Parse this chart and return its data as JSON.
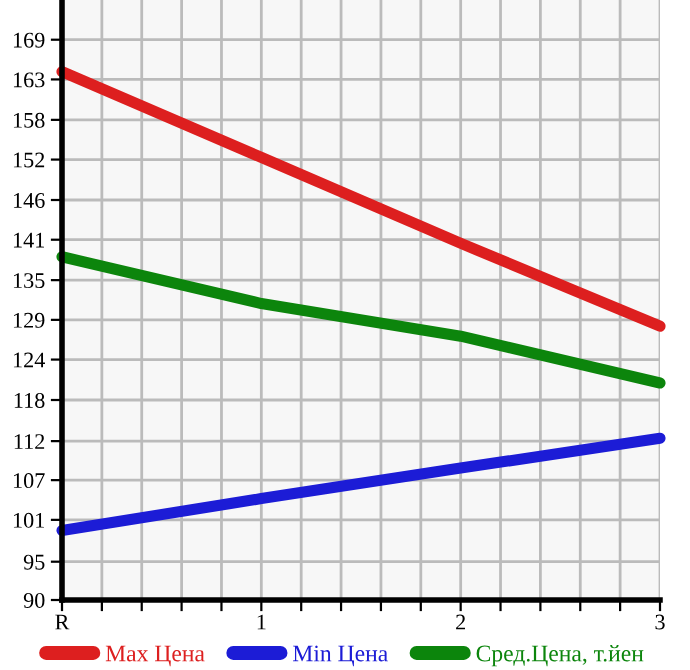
{
  "chart_data": {
    "type": "line",
    "x": [
      0,
      1,
      2,
      3
    ],
    "series": [
      {
        "name": "Max Цена",
        "color": "#dd1f1f",
        "values": [
          164.5,
          152.4,
          140.3,
          128.6
        ]
      },
      {
        "name": "Min Цена",
        "color": "#1c1cd6",
        "values": [
          99.8,
          104.3,
          108.6,
          112.8
        ]
      },
      {
        "name": "Сред.Цена, т.йен",
        "color": "#0c850c",
        "values": [
          138.4,
          131.8,
          127.2,
          120.6
        ]
      }
    ],
    "xlim": [
      0,
      3
    ],
    "xticks": [
      {
        "value": 0,
        "label": "R"
      },
      {
        "value": 0.2,
        "label": null
      },
      {
        "value": 0.4,
        "label": null
      },
      {
        "value": 0.6,
        "label": null
      },
      {
        "value": 0.8,
        "label": null
      },
      {
        "value": 1,
        "label": "1"
      },
      {
        "value": 1.2,
        "label": null
      },
      {
        "value": 1.4,
        "label": null
      },
      {
        "value": 1.6,
        "label": null
      },
      {
        "value": 1.8,
        "label": null
      },
      {
        "value": 2,
        "label": "2"
      },
      {
        "value": 2.2,
        "label": null
      },
      {
        "value": 2.4,
        "label": null
      },
      {
        "value": 2.6,
        "label": null
      },
      {
        "value": 2.8,
        "label": null
      },
      {
        "value": 3,
        "label": "3"
      }
    ],
    "ylim": [
      90,
      174.6
    ],
    "yticks": [
      {
        "value": 90,
        "label": "90"
      },
      {
        "value": 95.4,
        "label": "95"
      },
      {
        "value": 101.3,
        "label": "101"
      },
      {
        "value": 106.9,
        "label": "107"
      },
      {
        "value": 112.4,
        "label": "112"
      },
      {
        "value": 118.2,
        "label": "118"
      },
      {
        "value": 123.9,
        "label": "124"
      },
      {
        "value": 129.5,
        "label": "129"
      },
      {
        "value": 135.1,
        "label": "135"
      },
      {
        "value": 140.8,
        "label": "141"
      },
      {
        "value": 146.4,
        "label": "146"
      },
      {
        "value": 152.1,
        "label": "152"
      },
      {
        "value": 157.7,
        "label": "158"
      },
      {
        "value": 163.4,
        "label": "163"
      },
      {
        "value": 169,
        "label": "169"
      }
    ],
    "grid": true,
    "legend": "bottom",
    "marker": "none",
    "line_style": "solid"
  }
}
